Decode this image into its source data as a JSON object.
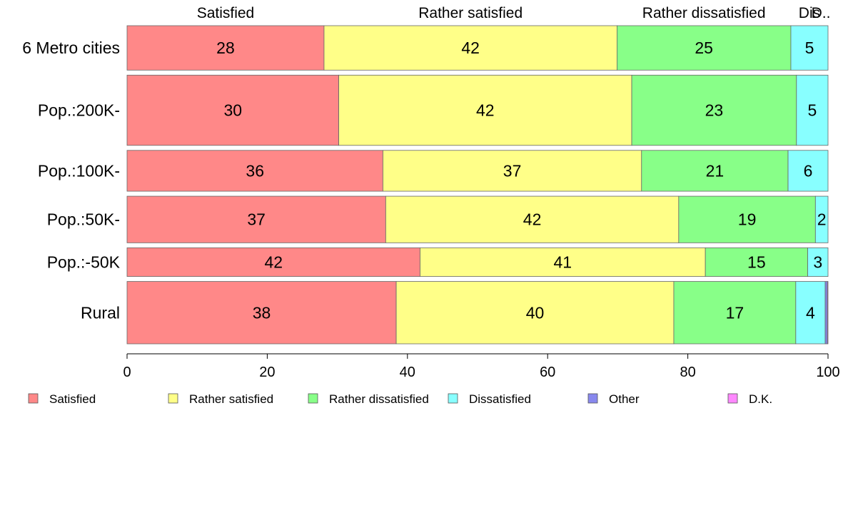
{
  "chart_data": {
    "type": "bar",
    "orientation": "horizontal",
    "stacked": true,
    "categories": [
      "6 Metro cities",
      "Pop.:200K-",
      "Pop.:100K-",
      "Pop.:50K-",
      "Pop.:-50K",
      "Rural"
    ],
    "category_widths": [
      62,
      98,
      57,
      65,
      40,
      87
    ],
    "series": [
      {
        "name": "Satisfied",
        "color": "#ff8888",
        "values": [
          28.1,
          30.2,
          36.5,
          36.9,
          41.8,
          38.4
        ]
      },
      {
        "name": "Rather satisfied",
        "color": "#ffff88",
        "values": [
          41.8,
          41.8,
          36.9,
          41.8,
          40.7,
          39.6
        ]
      },
      {
        "name": "Rather dissatisfied",
        "color": "#88ff88",
        "values": [
          24.8,
          23.5,
          20.9,
          19.5,
          14.6,
          17.4
        ]
      },
      {
        "name": "Dissatisfied",
        "color": "#88ffff",
        "values": [
          5.3,
          4.5,
          5.7,
          1.8,
          2.9,
          4.2
        ]
      },
      {
        "name": "Other",
        "color": "#8888ee",
        "values": [
          0,
          0,
          0,
          0,
          0,
          0.3
        ]
      },
      {
        "name": "D.K.",
        "color": "#ff88ff",
        "values": [
          0,
          0,
          0,
          0,
          0,
          0.1
        ]
      }
    ],
    "data_labels": [
      [
        "28",
        "42",
        "25",
        "5",
        "",
        ""
      ],
      [
        "30",
        "42",
        "23",
        "5",
        "",
        ""
      ],
      [
        "36",
        "37",
        "21",
        "6",
        "",
        ""
      ],
      [
        "37",
        "42",
        "19",
        "2",
        "",
        ""
      ],
      [
        "42",
        "41",
        "15",
        "3",
        "",
        ""
      ],
      [
        "38",
        "40",
        "17",
        "4",
        "",
        ""
      ]
    ],
    "top_labels": [
      "Satisfied",
      "Rather satisfied",
      "Rather dissatisfied",
      "Dis",
      "D.."
    ],
    "xlim": [
      0,
      100
    ],
    "x_ticks": [
      0,
      20,
      40,
      60,
      80,
      100
    ],
    "grid": false,
    "legend_position": "bottom"
  }
}
